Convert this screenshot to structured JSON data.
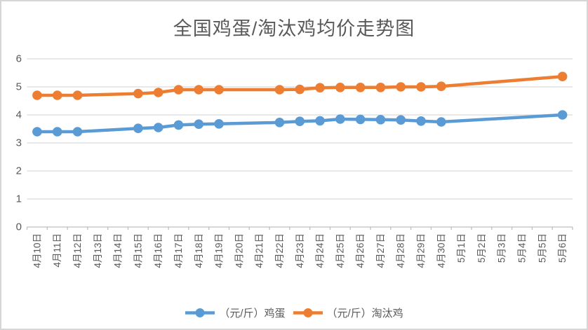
{
  "chart_data": {
    "type": "line",
    "title": "全国鸡蛋/淘汰鸡均价走势图",
    "categories": [
      "4月10日",
      "4月11日",
      "4月12日",
      "4月13日",
      "4月14日",
      "4月15日",
      "4月16日",
      "4月17日",
      "4月18日",
      "4月19日",
      "4月20日",
      "4月21日",
      "4月22日",
      "4月23日",
      "4月24日",
      "4月25日",
      "4月26日",
      "4月27日",
      "4月28日",
      "4月29日",
      "4月30日",
      "5月1日",
      "5月2日",
      "5月3日",
      "5月4日",
      "5月5日",
      "5月6日"
    ],
    "series": [
      {
        "name": "（元/斤）鸡蛋",
        "color": "#5B9BD5",
        "values": [
          3.4,
          3.4,
          3.4,
          null,
          null,
          3.52,
          3.55,
          3.64,
          3.67,
          3.68,
          null,
          null,
          3.73,
          3.77,
          3.79,
          3.85,
          3.84,
          3.83,
          3.82,
          3.78,
          3.75,
          null,
          null,
          null,
          null,
          null,
          4.0
        ]
      },
      {
        "name": "（元/斤）淘汰鸡",
        "color": "#ED7D31",
        "values": [
          4.7,
          4.7,
          4.7,
          null,
          null,
          4.76,
          4.8,
          4.9,
          4.9,
          4.9,
          null,
          null,
          4.9,
          4.91,
          4.97,
          4.98,
          4.98,
          4.98,
          5.0,
          5.0,
          5.02,
          null,
          null,
          null,
          null,
          null,
          5.37
        ]
      }
    ],
    "xlabel": "",
    "ylabel": "",
    "ylim": [
      0,
      6
    ],
    "ytick_interval": 1,
    "yticks": [
      0,
      1,
      2,
      3,
      4,
      5,
      6
    ],
    "grid": true,
    "legend_position": "bottom",
    "marker": "circle",
    "line_connects_gaps": true
  },
  "colors": {
    "title_text": "#595959",
    "axis_text": "#595959",
    "gridline": "#d9d9d9",
    "axis_line": "#bfbfbf",
    "frame_border": "#d6d6d6",
    "background": "#ffffff"
  }
}
